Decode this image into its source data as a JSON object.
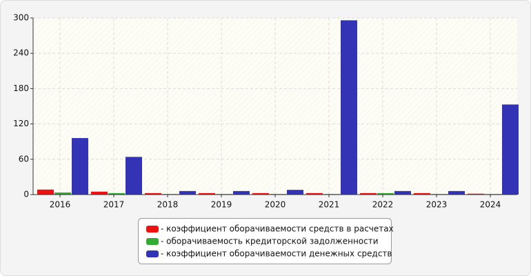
{
  "chart_data": {
    "type": "bar",
    "categories": [
      "2016",
      "2017",
      "2018",
      "2019",
      "2020",
      "2021",
      "2022",
      "2023",
      "2024"
    ],
    "series": [
      {
        "name": "- коэффициент оборачиваемости средств в расчетах",
        "color": "#ee1111",
        "values": [
          8.5,
          5,
          2.5,
          2.5,
          2.5,
          2.5,
          2.5,
          2.5,
          1.5
        ]
      },
      {
        "name": "- оборачиваемость кредиторской задолженности",
        "color": "#33aa33",
        "values": [
          3.5,
          2.5,
          1,
          1,
          1,
          1,
          2.5,
          1,
          1
        ]
      },
      {
        "name": "- коэффициент оборачиваемости денежных средств",
        "color": "#3333b5",
        "values": [
          96,
          64,
          6,
          6,
          8,
          296,
          6,
          6,
          153
        ]
      }
    ],
    "ylim": [
      0,
      300
    ],
    "yticks": [
      0,
      60,
      120,
      180,
      240,
      300
    ],
    "grid": true
  }
}
